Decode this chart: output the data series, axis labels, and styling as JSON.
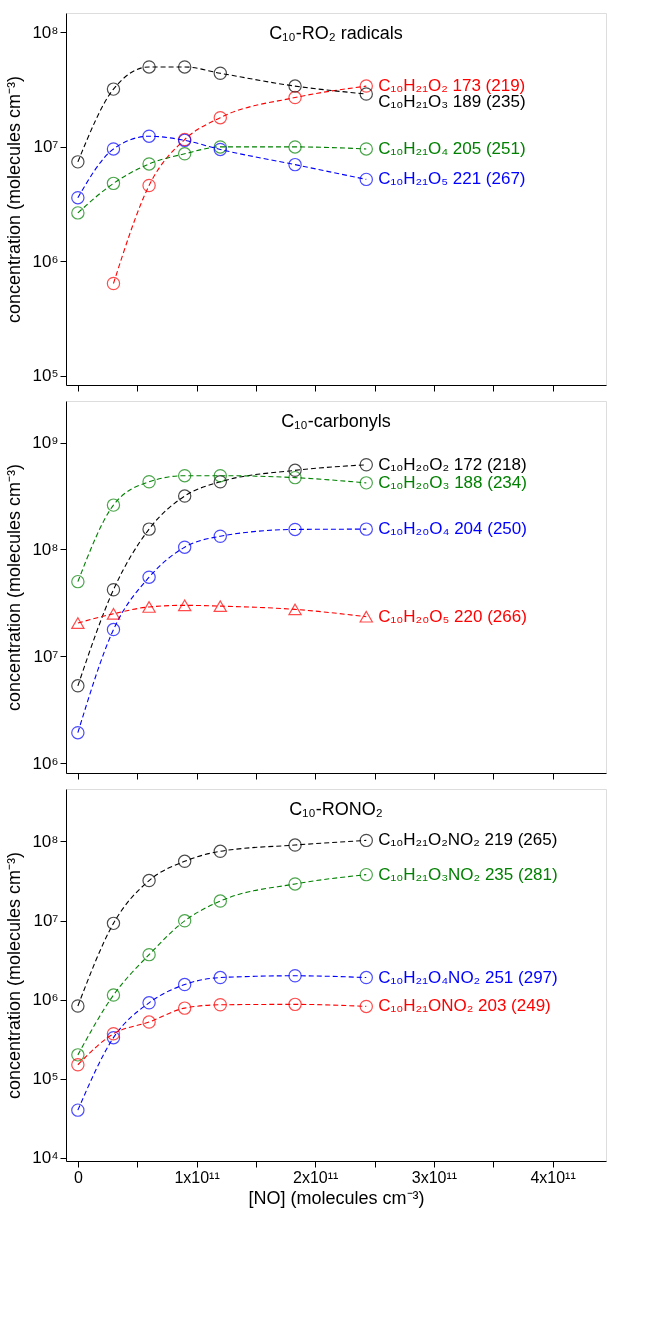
{
  "chart_data": [
    {
      "type": "line",
      "title": "C₁₀-RO₂ radicals",
      "ylabel": "concentration  (molecules cm⁻³)",
      "log": true,
      "line_style": "dashed",
      "marker": "circle",
      "grid": false,
      "tick_labels": "y",
      "x": [
        0,
        30000000000.0,
        60000000000.0,
        90000000000.0,
        120000000000.0,
        183000000000.0,
        243000000000.0
      ],
      "xlim": [
        -10000000000.0,
        445000000000.0
      ],
      "xticks": [
        {
          "value": 0,
          "label": null
        },
        {
          "value": 50000000000.0,
          "label": null
        },
        {
          "value": 100000000000.0,
          "label": null
        },
        {
          "value": 150000000000.0,
          "label": null
        },
        {
          "value": 200000000000.0,
          "label": null
        },
        {
          "value": 250000000000.0,
          "label": null
        },
        {
          "value": 300000000000.0,
          "label": null
        },
        {
          "value": 350000000000.0,
          "label": null
        },
        {
          "value": 400000000000.0,
          "label": null
        }
      ],
      "ylim": [
        83000.0,
        148000000.0
      ],
      "yticks": [
        {
          "value": 100000.0,
          "label": "10⁵"
        },
        {
          "value": 1000000.0,
          "label": "10⁶"
        },
        {
          "value": 10000000.0,
          "label": "10⁷"
        },
        {
          "value": 100000000.0,
          "label": "10⁸"
        }
      ],
      "series": [
        {
          "name": "C₁₀H₂₁O₂  173 (219)",
          "color": "#ff0000",
          "values": [
            null,
            640000.0,
            4600000.0,
            11600000.0,
            18000000.0,
            27000000.0,
            34000000.0
          ]
        },
        {
          "name": "C₁₀H₂₁O₃  189 (235)",
          "color": "#000000",
          "values": [
            7400000.0,
            32000000.0,
            50000000.0,
            50000000.0,
            44000000.0,
            34000000.0,
            29000000.0
          ]
        },
        {
          "name": "C₁₀H₂₁O₄  205 (251)",
          "color": "#008000",
          "values": [
            2650000.0,
            4800000.0,
            7100000.0,
            8700000.0,
            10000000.0,
            10000000.0,
            9600000.0
          ]
        },
        {
          "name": "C₁₀H₂₁O₅  221 (267)",
          "color": "#0000ff",
          "values": [
            3600000.0,
            9600000.0,
            12400000.0,
            11400000.0,
            9500000.0,
            7000000.0,
            5200000.0
          ]
        }
      ]
    },
    {
      "type": "line",
      "title": "C₁₀-carbonyls",
      "ylabel": "concentration  (molecules cm⁻³)",
      "log": true,
      "line_style": "dashed",
      "marker": "circle",
      "grid": false,
      "tick_labels": "y",
      "x": [
        0,
        30000000000.0,
        60000000000.0,
        90000000000.0,
        120000000000.0,
        183000000000.0,
        243000000000.0
      ],
      "xlim": [
        -10000000000.0,
        445000000000.0
      ],
      "xticks": [
        {
          "value": 0,
          "label": null
        },
        {
          "value": 50000000000.0,
          "label": null
        },
        {
          "value": 100000000000.0,
          "label": null
        },
        {
          "value": 150000000000.0,
          "label": null
        },
        {
          "value": 200000000000.0,
          "label": null
        },
        {
          "value": 250000000000.0,
          "label": null
        },
        {
          "value": 300000000000.0,
          "label": null
        },
        {
          "value": 350000000000.0,
          "label": null
        },
        {
          "value": 400000000000.0,
          "label": null
        }
      ],
      "ylim": [
        810000.0,
        2450000000.0
      ],
      "yticks": [
        {
          "value": 1000000.0,
          "label": "10⁶"
        },
        {
          "value": 10000000.0,
          "label": "10⁷"
        },
        {
          "value": 100000000.0,
          "label": "10⁸"
        },
        {
          "value": 1000000000.0,
          "label": "10⁹"
        }
      ],
      "series": [
        {
          "name": "C₁₀H₂₀O₂  172 (218)",
          "color": "#000000",
          "values": [
            5300000.0,
            42000000.0,
            155000000.0,
            316000000.0,
            430000000.0,
            550000000.0,
            620000000.0
          ]
        },
        {
          "name": "C₁₀H₂₀O₃  188 (234)",
          "color": "#008000",
          "values": [
            50000000.0,
            260000000.0,
            430000000.0,
            490000000.0,
            490000000.0,
            470000000.0,
            420000000.0
          ]
        },
        {
          "name": "C₁₀H₂₀O₄  204 (250)",
          "color": "#0000ff",
          "values": [
            1930000.0,
            17800000.0,
            55000000.0,
            105000000.0,
            133000000.0,
            154000000.0,
            155000000.0
          ]
        },
        {
          "name": "C₁₀H₂₀O₅  220 (266)",
          "color": "#ff0000",
          "marker": "triangle",
          "values": [
            20500000.0,
            25000000.0,
            29000000.0,
            30000000.0,
            29500000.0,
            27500000.0,
            23500000.0
          ]
        }
      ]
    },
    {
      "type": "line",
      "title": "C₁₀-RONO₂",
      "xlabel": "[NO]  (molecules cm⁻³)",
      "ylabel": "concentration  (molecules cm⁻³)",
      "log": true,
      "line_style": "dashed",
      "marker": "circle",
      "grid": false,
      "x": [
        0,
        30000000000.0,
        60000000000.0,
        90000000000.0,
        120000000000.0,
        183000000000.0,
        243000000000.0
      ],
      "xlim": [
        -10000000000.0,
        445000000000.0
      ],
      "xticks": [
        0,
        {
          "value": 50000000000.0,
          "label": null
        },
        {
          "value": 100000000000.0,
          "label": "1x10¹¹"
        },
        {
          "value": 150000000000.0,
          "label": null
        },
        {
          "value": 200000000000.0,
          "label": "2x10¹¹"
        },
        {
          "value": 250000000000.0,
          "label": null
        },
        {
          "value": 300000000000.0,
          "label": "3x10¹¹"
        },
        {
          "value": 350000000000.0,
          "label": null
        },
        {
          "value": 400000000000.0,
          "label": "4x10¹¹"
        }
      ],
      "ylim": [
        9100.0,
        460000000.0
      ],
      "yticks": [
        {
          "value": 10000.0,
          "label": "10⁴"
        },
        {
          "value": 100000.0,
          "label": "10⁵"
        },
        {
          "value": 1000000.0,
          "label": "10⁶"
        },
        {
          "value": 10000000.0,
          "label": "10⁷"
        },
        {
          "value": 100000000.0,
          "label": "10⁸"
        }
      ],
      "series": [
        {
          "name": "C₁₀H₂₁O₂NO₂  219 (265)",
          "color": "#000000",
          "values": [
            830000.0,
            9200000.0,
            32000000.0,
            56000000.0,
            75000000.0,
            90000000.0,
            103000000.0
          ]
        },
        {
          "name": "C₁₀H₂₁O₃NO₂  235 (281)",
          "color": "#008000",
          "values": [
            200000.0,
            1140000.0,
            3700000.0,
            9900000.0,
            17600000.0,
            29000000.0,
            38000000.0
          ]
        },
        {
          "name": "C₁₀H₂₁O₄NO₂  251 (297)",
          "color": "#0000ff",
          "values": [
            40000.0,
            330000.0,
            910000.0,
            1550000.0,
            1900000.0,
            2000000.0,
            1900000.0
          ]
        },
        {
          "name": "C₁₀H₂₁ONO₂  203 (249)",
          "color": "#ff0000",
          "values": [
            150000.0,
            370000.0,
            520000.0,
            780000.0,
            860000.0,
            870000.0,
            820000.0
          ]
        }
      ]
    }
  ]
}
